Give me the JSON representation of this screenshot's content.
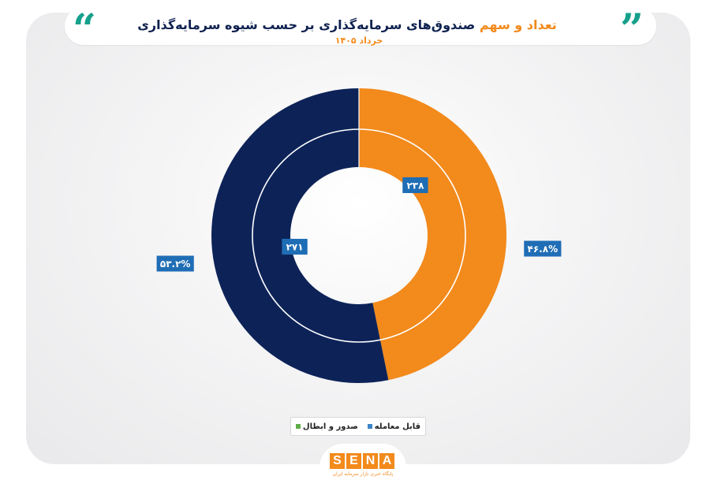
{
  "header": {
    "title_highlight": "تعداد و سهم",
    "title_main": "صندوق‌های سرمایه‌گذاری بر حسب شیوه سرمایه‌گذاری",
    "subtitle": "خرداد ۱۴۰۵",
    "quote_left": "“",
    "quote_right": "”"
  },
  "chart_data": {
    "type": "pie",
    "variant": "donut",
    "title": "تعداد و سهم صندوق‌های سرمایه‌گذاری بر حسب شیوه سرمایه‌گذاری",
    "subtitle": "خرداد ۱۴۰۵",
    "slices": [
      {
        "name": "",
        "percent": 46.8,
        "count": 238,
        "percent_label": "۴۶.۸%",
        "count_label": "۲۳۸",
        "color": "#f28a1c"
      },
      {
        "name": "",
        "percent": 53.2,
        "count": 271,
        "percent_label": "۵۳.۲%",
        "count_label": "۲۷۱",
        "color": "#0d2358"
      }
    ],
    "legend": [
      {
        "label": "قابل معامله",
        "color": "#3d84c6"
      },
      {
        "label": "صدور و ابطال",
        "color": "#5fae4a"
      }
    ],
    "legend_position": "bottom",
    "label_box_color": "#1f6db5"
  },
  "logo": {
    "letters": [
      "S",
      "E",
      "N",
      "A"
    ],
    "tagline": "پایگاه خبری بازار سرمایه ایران"
  }
}
